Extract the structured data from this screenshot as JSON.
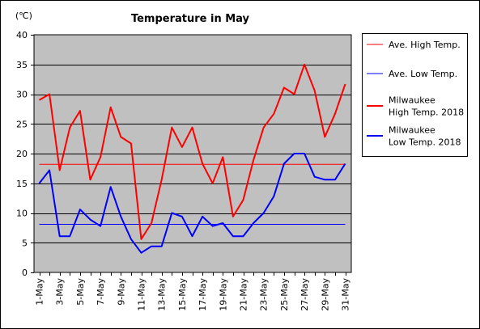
{
  "chart_data": {
    "type": "line",
    "title": "Temperature in May",
    "unit_label": "(℃)",
    "xlabel": "",
    "ylabel": "",
    "ylim": [
      0,
      40
    ],
    "yticks": [
      0,
      5,
      10,
      15,
      20,
      25,
      30,
      35,
      40
    ],
    "grid": "horizontal",
    "legend_position": "right",
    "plot_background": "#c0c0c0",
    "categories": [
      "1-May",
      "2-May",
      "3-May",
      "4-May",
      "5-May",
      "6-May",
      "7-May",
      "8-May",
      "9-May",
      "10-May",
      "11-May",
      "12-May",
      "13-May",
      "14-May",
      "15-May",
      "16-May",
      "17-May",
      "18-May",
      "19-May",
      "20-May",
      "21-May",
      "22-May",
      "23-May",
      "24-May",
      "25-May",
      "26-May",
      "27-May",
      "28-May",
      "29-May",
      "30-May",
      "31-May"
    ],
    "xtick_labels": [
      "1-May",
      "3-May",
      "5-May",
      "7-May",
      "9-May",
      "11-May",
      "13-May",
      "15-May",
      "17-May",
      "19-May",
      "21-May",
      "23-May",
      "25-May",
      "27-May",
      "29-May",
      "31-May"
    ],
    "series": [
      {
        "name": "Ave. High Temp.",
        "color": "#ff0000",
        "width": "thin",
        "values": [
          18.2,
          18.2,
          18.2,
          18.2,
          18.2,
          18.2,
          18.2,
          18.2,
          18.2,
          18.2,
          18.2,
          18.2,
          18.2,
          18.2,
          18.2,
          18.2,
          18.2,
          18.2,
          18.2,
          18.2,
          18.2,
          18.2,
          18.2,
          18.2,
          18.2,
          18.2,
          18.2,
          18.2,
          18.2,
          18.2,
          18.2
        ]
      },
      {
        "name": "Ave. Low Temp.",
        "color": "#0000ff",
        "width": "thin",
        "values": [
          8.1,
          8.1,
          8.1,
          8.1,
          8.1,
          8.1,
          8.1,
          8.1,
          8.1,
          8.1,
          8.1,
          8.1,
          8.1,
          8.1,
          8.1,
          8.1,
          8.1,
          8.1,
          8.1,
          8.1,
          8.1,
          8.1,
          8.1,
          8.1,
          8.1,
          8.1,
          8.1,
          8.1,
          8.1,
          8.1,
          8.1
        ]
      },
      {
        "name": "Milwaukee High Temp. 2018",
        "legend_lines": [
          "Milwaukee",
          "High Temp. 2018"
        ],
        "color": "#ff0000",
        "width": "thick",
        "values": [
          29.0,
          30.0,
          17.2,
          24.4,
          27.2,
          15.6,
          19.4,
          27.8,
          22.8,
          21.7,
          5.6,
          8.3,
          15.6,
          24.4,
          21.1,
          24.4,
          18.3,
          15.0,
          19.4,
          9.4,
          12.2,
          18.9,
          24.4,
          26.7,
          31.1,
          30.0,
          35.0,
          30.6,
          22.8,
          26.7,
          31.7
        ]
      },
      {
        "name": "Milwaukee Low Temp. 2018",
        "legend_lines": [
          "Milwaukee",
          "Low Temp. 2018"
        ],
        "color": "#0000ff",
        "width": "thick",
        "values": [
          15.0,
          17.2,
          6.1,
          6.1,
          10.6,
          8.9,
          7.8,
          14.4,
          9.4,
          5.6,
          3.3,
          4.4,
          4.4,
          10.0,
          9.4,
          6.1,
          9.4,
          7.8,
          8.3,
          6.1,
          6.1,
          8.3,
          10.0,
          12.8,
          18.3,
          20.0,
          20.0,
          16.1,
          15.6,
          15.6,
          18.3
        ]
      }
    ]
  }
}
